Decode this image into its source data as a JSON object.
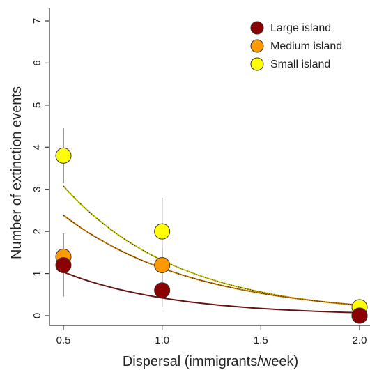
{
  "chart_data": {
    "type": "scatter",
    "title": "",
    "xlabel": "Dispersal (immigrants/week)",
    "ylabel": "Number of extinction events",
    "xlim": [
      0.45,
      2.0
    ],
    "ylim": [
      -0.15,
      7.2
    ],
    "x_ticks": [
      0.5,
      1.0,
      1.5,
      2.0
    ],
    "x_tick_labels": [
      "0.5",
      "1.0",
      "1.5",
      "2.0"
    ],
    "y_ticks": [
      0,
      1,
      2,
      3,
      4,
      5,
      6,
      7
    ],
    "y_tick_labels": [
      "0",
      "1",
      "2",
      "3",
      "4",
      "5",
      "6",
      "7"
    ],
    "grid": false,
    "legend_position": "top-right",
    "series": [
      {
        "name": "Small island",
        "color": "#ffff00",
        "curve_color": "#c8c800",
        "points": [
          {
            "x": 0.5,
            "y": 3.8,
            "err_low": 3.15,
            "err_high": 4.45
          },
          {
            "x": 1.0,
            "y": 2.0,
            "err_low": 1.2,
            "err_high": 2.8
          },
          {
            "x": 2.0,
            "y": 0.2,
            "err_low": 0.12,
            "err_high": 0.28
          }
        ],
        "fit": {
          "a": 7.2,
          "b": 1.7
        }
      },
      {
        "name": "Medium island",
        "color": "#ff9900",
        "curve_color": "#cc7a00",
        "points": [
          {
            "x": 0.5,
            "y": 1.4,
            "err_low": 0.85,
            "err_high": 1.95
          },
          {
            "x": 1.0,
            "y": 1.2,
            "err_low": 0.8,
            "err_high": 1.6
          },
          {
            "x": 2.0,
            "y": 0.0,
            "err_low": 0.0,
            "err_high": 0.05
          }
        ],
        "fit": {
          "a": 5.05,
          "b": 1.5
        }
      },
      {
        "name": "Large island",
        "color": "#8b0000",
        "curve_color": "#7a1010",
        "points": [
          {
            "x": 0.5,
            "y": 1.2,
            "err_low": 0.45,
            "err_high": 1.95
          },
          {
            "x": 1.0,
            "y": 0.6,
            "err_low": 0.2,
            "err_high": 1.0
          },
          {
            "x": 2.0,
            "y": 0.0,
            "err_low": 0.0,
            "err_high": 0.05
          }
        ],
        "fit": {
          "a": 2.55,
          "b": 1.8
        }
      }
    ],
    "legend_order": [
      "Large island",
      "Medium island",
      "Small island"
    ]
  }
}
